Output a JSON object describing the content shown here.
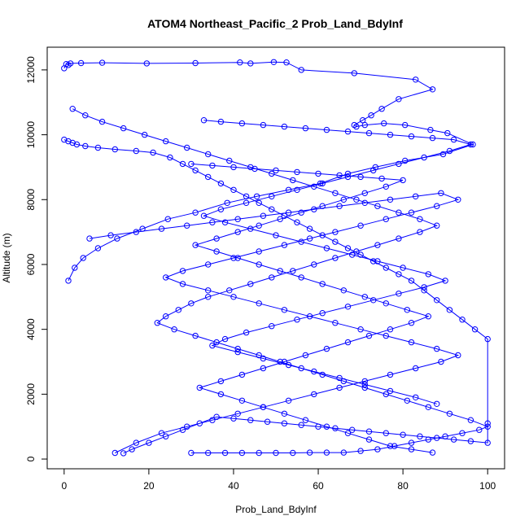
{
  "chart_data": {
    "type": "scatter",
    "title": "ATOM4 Northeast_Pacific_2 Prob_Land_BdyInf",
    "xlabel": "Prob_Land_BdyInf",
    "ylabel": "Altitude (m)",
    "xlim": [
      -4,
      104
    ],
    "ylim": [
      -300,
      12700
    ],
    "x_ticks": [
      0,
      20,
      40,
      60,
      80,
      100
    ],
    "y_ticks": [
      0,
      2000,
      4000,
      6000,
      8000,
      10000,
      12000
    ],
    "grid": false,
    "legend": "none",
    "color": "#0000ff",
    "marker": "open-circle",
    "connected": true,
    "series": [
      {
        "x": [
          0,
          0.5,
          1,
          1.5,
          4,
          9,
          19.5,
          31,
          41.5,
          44,
          49.5,
          52.5,
          56,
          68.5,
          83,
          87,
          79,
          75,
          72.5,
          70.5,
          68.5,
          69,
          71,
          75.5,
          80.5,
          86.5,
          90.5,
          96.5,
          89.5,
          80.5,
          73.5,
          67,
          60.5,
          53,
          45.5,
          38.5,
          31,
          24.5,
          18.5,
          12.5,
          8,
          4.5,
          2.5,
          1
        ],
        "y": [
          12050,
          12180,
          12150,
          12200,
          12210,
          12220,
          12200,
          12210,
          12230,
          12200,
          12240,
          12230,
          12000,
          11900,
          11700,
          11400,
          11100,
          10800,
          10600,
          10450,
          10300,
          10250,
          10300,
          10350,
          10300,
          10150,
          10050,
          9700,
          9400,
          9200,
          9000,
          8800,
          8500,
          8300,
          8100,
          7900,
          7600,
          7400,
          7100,
          6800,
          6500,
          6200,
          5900,
          5500
        ]
      },
      {
        "x": [
          0,
          1,
          2,
          3,
          5,
          8,
          12,
          17,
          21,
          25,
          28,
          31,
          34,
          37,
          40,
          43,
          46,
          49,
          52,
          55,
          58,
          61,
          64,
          67,
          70,
          73,
          76,
          79,
          82,
          85,
          88,
          91,
          94,
          97,
          100,
          100,
          100,
          96,
          92,
          88,
          84,
          80,
          76,
          72,
          68,
          64,
          60,
          56,
          52,
          48,
          44,
          40,
          36,
          32,
          28,
          24,
          20,
          16,
          14
        ],
        "y": [
          9850,
          9800,
          9750,
          9700,
          9650,
          9600,
          9550,
          9500,
          9450,
          9300,
          9100,
          8900,
          8700,
          8500,
          8300,
          8100,
          7900,
          7700,
          7500,
          7300,
          7100,
          6900,
          6700,
          6500,
          6300,
          6100,
          5900,
          5700,
          5500,
          5200,
          4900,
          4600,
          4300,
          4000,
          3700,
          1100,
          500,
          550,
          600,
          650,
          700,
          750,
          800,
          850,
          900,
          950,
          1000,
          1050,
          1100,
          1150,
          1200,
          1250,
          1300,
          1100,
          900,
          700,
          500,
          300,
          180
        ]
      },
      {
        "x": [
          2,
          5,
          9,
          14,
          19,
          24,
          29,
          34,
          39,
          44,
          49,
          54,
          59,
          64,
          69,
          74,
          79,
          84,
          88,
          84,
          79,
          74,
          69,
          64,
          59,
          54,
          49,
          44,
          39,
          34,
          30,
          27,
          24,
          22,
          26,
          31,
          36,
          41,
          46,
          51,
          56,
          61,
          66,
          71,
          76,
          81,
          86,
          91,
          96,
          100,
          98,
          94,
          90,
          86,
          82,
          78,
          74,
          70,
          66,
          62,
          58,
          54,
          50,
          46,
          42,
          38,
          34,
          30
        ],
        "y": [
          10800,
          10600,
          10400,
          10200,
          10000,
          9800,
          9600,
          9400,
          9200,
          9000,
          8800,
          8600,
          8400,
          8200,
          8000,
          7800,
          7600,
          7400,
          7200,
          7000,
          6800,
          6600,
          6400,
          6200,
          6000,
          5800,
          5600,
          5400,
          5200,
          5000,
          4800,
          4600,
          4400,
          4200,
          4000,
          3800,
          3600,
          3400,
          3200,
          3000,
          2800,
          2600,
          2400,
          2200,
          2000,
          1800,
          1600,
          1400,
          1200,
          1000,
          900,
          800,
          700,
          600,
          500,
          400,
          300,
          250,
          200,
          200,
          200,
          190,
          190,
          190,
          190,
          190,
          190,
          190
        ]
      },
      {
        "x": [
          6,
          11,
          17,
          23,
          29,
          35,
          41,
          47,
          53,
          59,
          65,
          71,
          77,
          83,
          89,
          93,
          88,
          82,
          76,
          70,
          64,
          58,
          52,
          46,
          40,
          34,
          28,
          24,
          28,
          34,
          40,
          46,
          52,
          58,
          64,
          70,
          76,
          82,
          88,
          93,
          89,
          83,
          77,
          71,
          65,
          59,
          53,
          47,
          41,
          35,
          29,
          23,
          17,
          12
        ],
        "y": [
          6800,
          6900,
          7000,
          7100,
          7200,
          7300,
          7400,
          7500,
          7600,
          7700,
          7800,
          7900,
          8000,
          8100,
          8200,
          8000,
          7800,
          7600,
          7400,
          7200,
          7000,
          6800,
          6600,
          6400,
          6200,
          6000,
          5800,
          5600,
          5400,
          5200,
          5000,
          4800,
          4600,
          4400,
          4200,
          4000,
          3800,
          3600,
          3400,
          3200,
          3000,
          2800,
          2600,
          2400,
          2200,
          2000,
          1800,
          1600,
          1400,
          1200,
          1000,
          800,
          500,
          190
        ]
      },
      {
        "x": [
          33,
          37,
          42,
          47,
          52,
          57,
          62,
          67,
          72,
          77,
          82,
          87,
          92,
          96,
          91,
          85,
          79,
          73,
          67,
          61,
          55,
          49,
          43,
          37,
          33,
          38,
          44,
          50,
          56,
          62,
          68,
          74,
          80,
          86,
          90,
          85,
          79,
          73,
          67,
          61,
          55,
          49,
          43,
          38,
          35,
          41,
          47,
          53,
          59,
          65,
          71,
          77,
          83,
          88
        ],
        "y": [
          10450,
          10400,
          10350,
          10300,
          10250,
          10200,
          10150,
          10100,
          10050,
          10000,
          9950,
          9900,
          9850,
          9700,
          9500,
          9300,
          9100,
          8900,
          8700,
          8500,
          8300,
          8100,
          7900,
          7700,
          7500,
          7300,
          7100,
          6900,
          6700,
          6500,
          6300,
          6100,
          5900,
          5700,
          5500,
          5300,
          5100,
          4900,
          4700,
          4500,
          4300,
          4100,
          3900,
          3700,
          3500,
          3300,
          3100,
          2900,
          2700,
          2500,
          2300,
          2100,
          1900,
          1700
        ]
      },
      {
        "x": [
          30,
          35,
          40,
          45,
          50,
          55,
          60,
          65,
          70,
          75,
          80,
          76,
          71,
          66,
          61,
          56,
          51,
          46,
          41,
          36,
          31,
          36,
          41,
          46,
          51,
          56,
          61,
          66,
          71,
          76,
          81,
          86,
          82,
          77,
          72,
          67,
          62,
          57,
          52,
          47,
          42,
          37,
          32,
          37,
          42,
          47,
          52,
          57,
          62,
          67,
          72,
          77,
          82,
          87
        ],
        "y": [
          9100,
          9050,
          9000,
          8950,
          8900,
          8850,
          8800,
          8750,
          8700,
          8650,
          8600,
          8400,
          8200,
          8000,
          7800,
          7600,
          7400,
          7200,
          7000,
          6800,
          6600,
          6400,
          6200,
          6000,
          5800,
          5600,
          5400,
          5200,
          5000,
          4800,
          4600,
          4400,
          4200,
          4000,
          3800,
          3600,
          3400,
          3200,
          3000,
          2800,
          2600,
          2400,
          2200,
          2000,
          1800,
          1600,
          1400,
          1200,
          1000,
          800,
          600,
          400,
          300,
          200
        ]
      }
    ]
  }
}
